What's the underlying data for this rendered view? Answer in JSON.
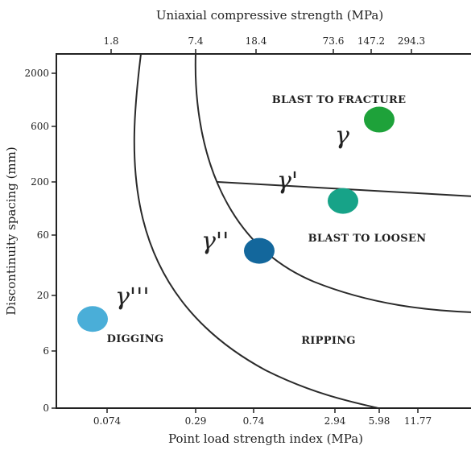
{
  "chart_data": {
    "type": "scatter",
    "title": "",
    "top_axis": {
      "label": "Uniaxial compressive strength (MPa)",
      "ticks": [
        "1.8",
        "7.4",
        "18.4",
        "73.6",
        "147.2",
        "294.3"
      ]
    },
    "x_axis": {
      "label": "Point load strength index (MPa)",
      "ticks": [
        "0.074",
        "0.29",
        "0.74",
        "2.94",
        "5.98",
        "11.77"
      ]
    },
    "y_axis": {
      "label": "Discontinuity spacing (mm)",
      "ticks": [
        "0",
        "6",
        "20",
        "60",
        "200",
        "600",
        "2000"
      ]
    },
    "zones": [
      {
        "id": "digging",
        "label": "DIGGING"
      },
      {
        "id": "ripping",
        "label": "RIPPING"
      },
      {
        "id": "blast-to-loosen",
        "label": "BLAST TO LOOSEN"
      },
      {
        "id": "blast-to-fracture",
        "label": "BLAST TO FRACTURE"
      }
    ],
    "points": [
      {
        "label": "γ'''",
        "x_tick": "0.074",
        "y_mm": 12,
        "color": "#4aaed8"
      },
      {
        "label": "γ''",
        "x_tick": "0.74",
        "y_mm": 45,
        "color": "#13679c"
      },
      {
        "label": "γ'",
        "x_tick": "2.94",
        "y_mm": 130,
        "color": "#17a388"
      },
      {
        "label": "γ",
        "x_tick": "5.98",
        "y_mm": 700,
        "color": "#1ea23a"
      }
    ]
  }
}
